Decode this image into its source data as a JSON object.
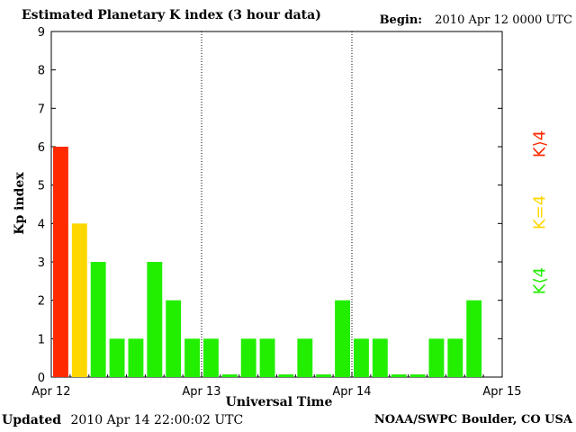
{
  "header": {
    "title": "Estimated Planetary K index (3 hour data)",
    "begin_label": "Begin:",
    "begin_value": "2010 Apr 12 0000 UTC"
  },
  "footer": {
    "updated_label": "Updated",
    "updated_value": "2010 Apr 14 22:00:02 UTC",
    "credit": "NOAA/SWPC Boulder, CO USA"
  },
  "legend": {
    "low": "K⟨4",
    "mid": "K=4",
    "high": "K⟩4"
  },
  "colors": {
    "low": "#22ee00",
    "mid": "#ffd700",
    "high": "#ff2a00"
  },
  "chart_data": {
    "type": "bar",
    "xlabel": "Universal Time",
    "ylabel": "Kp index",
    "ylim": [
      0,
      9
    ],
    "yticks": [
      0,
      1,
      2,
      3,
      4,
      5,
      6,
      7,
      8,
      9
    ],
    "x_day_labels": [
      "Apr 12",
      "Apr 13",
      "Apr 14",
      "Apr 15"
    ],
    "interval_hours": 3,
    "values": [
      6,
      4,
      3,
      1,
      1,
      3,
      2,
      1,
      1,
      0,
      1,
      1,
      0,
      1,
      0,
      2,
      1,
      1,
      0,
      0,
      1,
      1,
      2
    ]
  }
}
